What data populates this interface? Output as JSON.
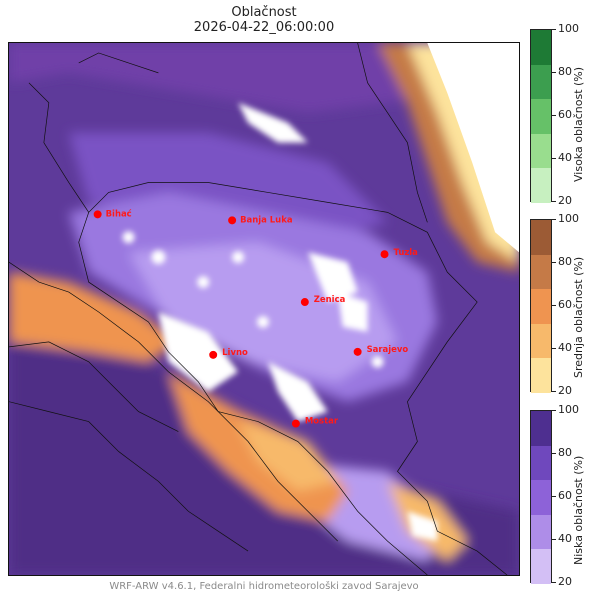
{
  "title": {
    "line1": "Oblačnost",
    "line2": "2026-04-22_06:00:00"
  },
  "footer": "WRF-ARW v4.6.1, Federalni hidrometeorološki zavod Sarajevo",
  "cities": [
    {
      "id": "bihac",
      "name": "Bihać"
    },
    {
      "id": "banja-luka",
      "name": "Banja Luka"
    },
    {
      "id": "tuzla",
      "name": "Tuzla"
    },
    {
      "id": "zenica",
      "name": "Zenica"
    },
    {
      "id": "livno",
      "name": "Livno"
    },
    {
      "id": "sarajevo",
      "name": "Sarajevo"
    },
    {
      "id": "mostar",
      "name": "Mostar"
    }
  ],
  "colorbars": [
    {
      "id": "high",
      "label": "Visoka oblačnost (%)",
      "ticks": [
        "100",
        "80",
        "60",
        "40",
        "20"
      ],
      "colors": [
        "#c7f0c0",
        "#99dd8e",
        "#66c168",
        "#3c9e4f",
        "#1e7a35"
      ]
    },
    {
      "id": "mid",
      "label": "Srednja oblačnost (%)",
      "ticks": [
        "100",
        "80",
        "60",
        "40",
        "20"
      ],
      "colors": [
        "#fde39c",
        "#f7b96b",
        "#ef9450",
        "#c57a47",
        "#9c5b35"
      ]
    },
    {
      "id": "low",
      "label": "Niska oblačnost (%)",
      "ticks": [
        "100",
        "80",
        "60",
        "40",
        "20"
      ],
      "colors": [
        "#d3bff5",
        "#ae8de8",
        "#8d62d8",
        "#6f48bd",
        "#4e2f90"
      ]
    }
  ]
}
